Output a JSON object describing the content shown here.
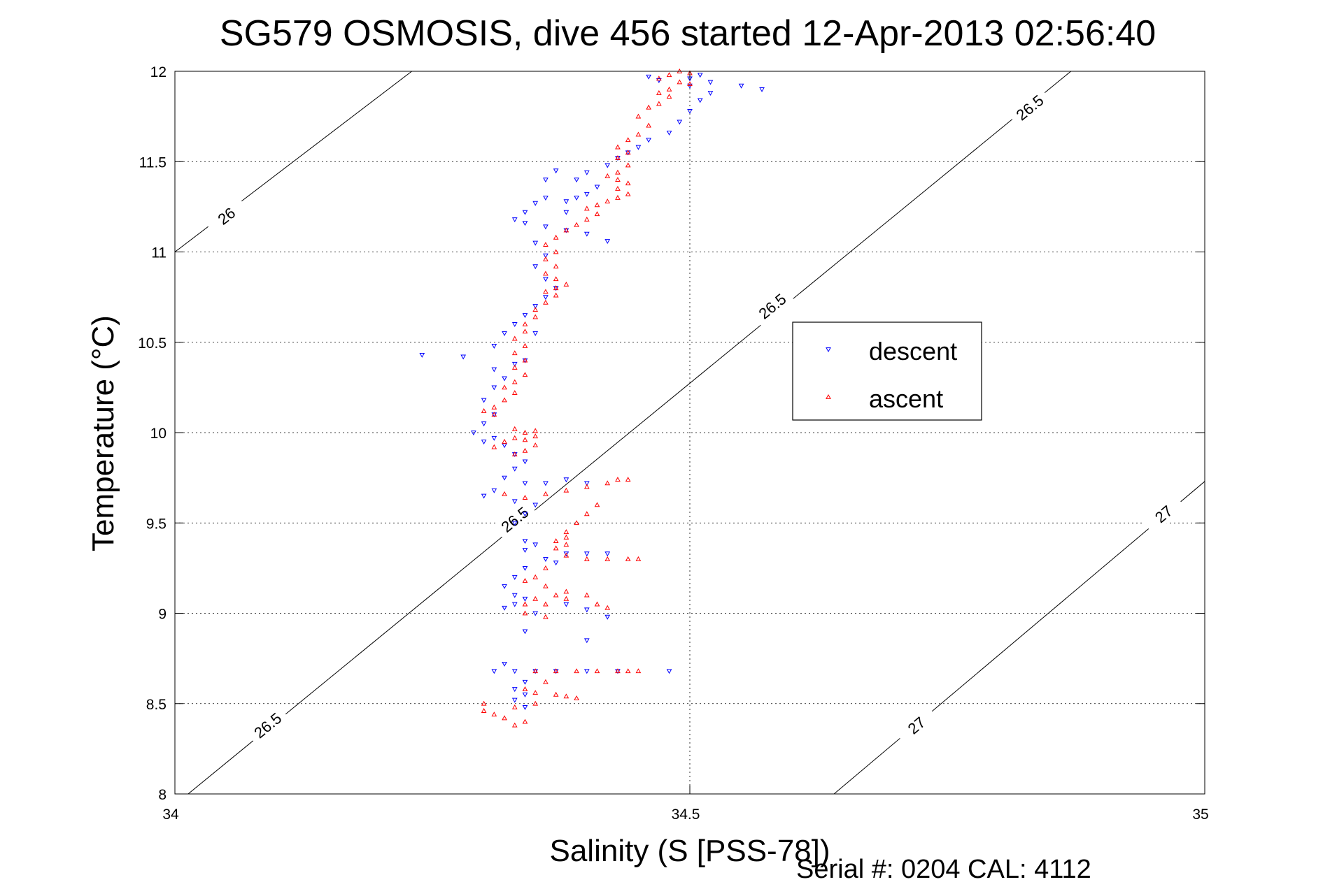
{
  "chart_data": {
    "type": "scatter",
    "title": "SG579 OSMOSIS, dive 456 started 12-Apr-2013 02:56:40",
    "xlabel": "Salinity (S [PSS-78])",
    "ylabel": "Temperature (°C)",
    "xlim": [
      34,
      35
    ],
    "ylim": [
      8,
      12
    ],
    "x_ticks": [
      "34",
      "34.5",
      "35"
    ],
    "y_ticks": [
      "8",
      "8.5",
      "9",
      "9.5",
      "10",
      "10.5",
      "11",
      "11.5",
      "12"
    ],
    "grid": true,
    "legend_position": "right",
    "colors": {
      "descent": "#0000ff",
      "ascent": "#ff0000",
      "contour": "#000000"
    },
    "series": [
      {
        "name": "descent",
        "marker": "triangle-down",
        "color": "#0000ff",
        "points": [
          [
            34.51,
            11.98
          ],
          [
            34.5,
            11.96
          ],
          [
            34.52,
            11.94
          ],
          [
            34.5,
            11.92
          ],
          [
            34.47,
            11.95
          ],
          [
            34.46,
            11.97
          ],
          [
            34.55,
            11.92
          ],
          [
            34.57,
            11.9
          ],
          [
            34.52,
            11.88
          ],
          [
            34.51,
            11.84
          ],
          [
            34.5,
            11.78
          ],
          [
            34.49,
            11.72
          ],
          [
            34.48,
            11.66
          ],
          [
            34.46,
            11.62
          ],
          [
            34.45,
            11.58
          ],
          [
            34.44,
            11.55
          ],
          [
            34.43,
            11.52
          ],
          [
            34.42,
            11.48
          ],
          [
            34.4,
            11.44
          ],
          [
            34.39,
            11.4
          ],
          [
            34.41,
            11.36
          ],
          [
            34.4,
            11.32
          ],
          [
            34.39,
            11.3
          ],
          [
            34.38,
            11.28
          ],
          [
            34.36,
            11.3
          ],
          [
            34.35,
            11.27
          ],
          [
            34.34,
            11.22
          ],
          [
            34.33,
            11.18
          ],
          [
            34.34,
            11.16
          ],
          [
            34.36,
            11.14
          ],
          [
            34.38,
            11.12
          ],
          [
            34.4,
            11.1
          ],
          [
            34.42,
            11.06
          ],
          [
            34.37,
            11.45
          ],
          [
            34.36,
            11.4
          ],
          [
            34.38,
            11.22
          ],
          [
            34.35,
            11.05
          ],
          [
            34.36,
            10.98
          ],
          [
            34.35,
            10.92
          ],
          [
            34.36,
            10.85
          ],
          [
            34.37,
            10.8
          ],
          [
            34.36,
            10.75
          ],
          [
            34.35,
            10.7
          ],
          [
            34.34,
            10.65
          ],
          [
            34.33,
            10.6
          ],
          [
            34.32,
            10.55
          ],
          [
            34.35,
            10.55
          ],
          [
            34.34,
            10.4
          ],
          [
            34.33,
            10.38
          ],
          [
            34.28,
            10.42
          ],
          [
            34.24,
            10.43
          ],
          [
            34.31,
            10.48
          ],
          [
            34.31,
            10.35
          ],
          [
            34.32,
            10.3
          ],
          [
            34.31,
            10.25
          ],
          [
            34.3,
            10.18
          ],
          [
            34.31,
            10.1
          ],
          [
            34.3,
            10.05
          ],
          [
            34.29,
            10.0
          ],
          [
            34.3,
            9.95
          ],
          [
            34.31,
            9.97
          ],
          [
            34.32,
            9.93
          ],
          [
            34.33,
            9.88
          ],
          [
            34.34,
            9.84
          ],
          [
            34.33,
            9.8
          ],
          [
            34.32,
            9.75
          ],
          [
            34.34,
            9.72
          ],
          [
            34.36,
            9.72
          ],
          [
            34.38,
            9.74
          ],
          [
            34.4,
            9.72
          ],
          [
            34.31,
            9.68
          ],
          [
            34.3,
            9.65
          ],
          [
            34.33,
            9.62
          ],
          [
            34.35,
            9.6
          ],
          [
            34.34,
            9.55
          ],
          [
            34.33,
            9.5
          ],
          [
            34.34,
            9.4
          ],
          [
            34.35,
            9.38
          ],
          [
            34.34,
            9.35
          ],
          [
            34.36,
            9.3
          ],
          [
            34.38,
            9.33
          ],
          [
            34.4,
            9.33
          ],
          [
            34.42,
            9.33
          ],
          [
            34.37,
            9.28
          ],
          [
            34.34,
            9.25
          ],
          [
            34.33,
            9.2
          ],
          [
            34.32,
            9.15
          ],
          [
            34.33,
            9.1
          ],
          [
            34.34,
            9.08
          ],
          [
            34.33,
            9.05
          ],
          [
            34.32,
            9.03
          ],
          [
            34.35,
            9.0
          ],
          [
            34.38,
            9.05
          ],
          [
            34.4,
            9.02
          ],
          [
            34.42,
            8.98
          ],
          [
            34.4,
            8.85
          ],
          [
            34.34,
            8.9
          ],
          [
            34.32,
            8.72
          ],
          [
            34.31,
            8.68
          ],
          [
            34.33,
            8.68
          ],
          [
            34.35,
            8.68
          ],
          [
            34.37,
            8.68
          ],
          [
            34.4,
            8.68
          ],
          [
            34.43,
            8.68
          ],
          [
            34.48,
            8.68
          ],
          [
            34.34,
            8.62
          ],
          [
            34.33,
            8.58
          ],
          [
            34.34,
            8.55
          ],
          [
            34.33,
            8.52
          ],
          [
            34.34,
            8.48
          ]
        ]
      },
      {
        "name": "ascent",
        "marker": "triangle-up",
        "color": "#ff0000",
        "points": [
          [
            34.49,
            12.0
          ],
          [
            34.5,
            11.99
          ],
          [
            34.48,
            11.98
          ],
          [
            34.47,
            11.96
          ],
          [
            34.49,
            11.94
          ],
          [
            34.5,
            11.93
          ],
          [
            34.48,
            11.9
          ],
          [
            34.47,
            11.88
          ],
          [
            34.48,
            11.86
          ],
          [
            34.47,
            11.82
          ],
          [
            34.46,
            11.8
          ],
          [
            34.45,
            11.75
          ],
          [
            34.46,
            11.7
          ],
          [
            34.45,
            11.65
          ],
          [
            34.44,
            11.62
          ],
          [
            34.43,
            11.58
          ],
          [
            34.44,
            11.55
          ],
          [
            34.43,
            11.52
          ],
          [
            34.44,
            11.48
          ],
          [
            34.43,
            11.44
          ],
          [
            34.42,
            11.42
          ],
          [
            34.43,
            11.4
          ],
          [
            34.44,
            11.38
          ],
          [
            34.43,
            11.35
          ],
          [
            34.44,
            11.32
          ],
          [
            34.43,
            11.3
          ],
          [
            34.42,
            11.28
          ],
          [
            34.41,
            11.26
          ],
          [
            34.4,
            11.24
          ],
          [
            34.41,
            11.21
          ],
          [
            34.4,
            11.18
          ],
          [
            34.39,
            11.15
          ],
          [
            34.38,
            11.12
          ],
          [
            34.37,
            11.08
          ],
          [
            34.36,
            11.04
          ],
          [
            34.37,
            11.0
          ],
          [
            34.36,
            10.96
          ],
          [
            34.37,
            10.92
          ],
          [
            34.36,
            10.88
          ],
          [
            34.37,
            10.85
          ],
          [
            34.38,
            10.82
          ],
          [
            34.37,
            10.8
          ],
          [
            34.36,
            10.78
          ],
          [
            34.37,
            10.76
          ],
          [
            34.36,
            10.72
          ],
          [
            34.35,
            10.68
          ],
          [
            34.35,
            10.64
          ],
          [
            34.34,
            10.6
          ],
          [
            34.34,
            10.56
          ],
          [
            34.33,
            10.52
          ],
          [
            34.34,
            10.48
          ],
          [
            34.33,
            10.44
          ],
          [
            34.34,
            10.4
          ],
          [
            34.33,
            10.36
          ],
          [
            34.34,
            10.32
          ],
          [
            34.33,
            10.28
          ],
          [
            34.32,
            10.25
          ],
          [
            34.33,
            10.22
          ],
          [
            34.32,
            10.18
          ],
          [
            34.31,
            10.14
          ],
          [
            34.3,
            10.12
          ],
          [
            34.31,
            10.1
          ],
          [
            34.33,
            10.02
          ],
          [
            34.34,
            10.0
          ],
          [
            34.35,
            10.01
          ],
          [
            34.35,
            9.98
          ],
          [
            34.34,
            9.96
          ],
          [
            34.33,
            9.97
          ],
          [
            34.32,
            9.95
          ],
          [
            34.35,
            9.93
          ],
          [
            34.34,
            9.9
          ],
          [
            34.33,
            9.88
          ],
          [
            34.31,
            9.92
          ],
          [
            34.32,
            9.66
          ],
          [
            34.34,
            9.64
          ],
          [
            34.36,
            9.66
          ],
          [
            34.38,
            9.68
          ],
          [
            34.4,
            9.7
          ],
          [
            34.42,
            9.72
          ],
          [
            34.43,
            9.74
          ],
          [
            34.44,
            9.74
          ],
          [
            34.41,
            9.6
          ],
          [
            34.4,
            9.55
          ],
          [
            34.39,
            9.5
          ],
          [
            34.38,
            9.45
          ],
          [
            34.38,
            9.42
          ],
          [
            34.37,
            9.4
          ],
          [
            34.38,
            9.38
          ],
          [
            34.37,
            9.36
          ],
          [
            34.38,
            9.32
          ],
          [
            34.4,
            9.3
          ],
          [
            34.42,
            9.3
          ],
          [
            34.44,
            9.3
          ],
          [
            34.45,
            9.3
          ],
          [
            34.36,
            9.25
          ],
          [
            34.35,
            9.2
          ],
          [
            34.34,
            9.18
          ],
          [
            34.36,
            9.15
          ],
          [
            34.38,
            9.12
          ],
          [
            34.37,
            9.1
          ],
          [
            34.35,
            9.08
          ],
          [
            34.34,
            9.05
          ],
          [
            34.36,
            9.05
          ],
          [
            34.38,
            9.08
          ],
          [
            34.4,
            9.1
          ],
          [
            34.41,
            9.05
          ],
          [
            34.42,
            9.03
          ],
          [
            34.34,
            9.0
          ],
          [
            34.36,
            8.98
          ],
          [
            34.35,
            8.68
          ],
          [
            34.37,
            8.68
          ],
          [
            34.39,
            8.68
          ],
          [
            34.41,
            8.68
          ],
          [
            34.43,
            8.68
          ],
          [
            34.44,
            8.68
          ],
          [
            34.45,
            8.68
          ],
          [
            34.36,
            8.62
          ],
          [
            34.34,
            8.58
          ],
          [
            34.35,
            8.56
          ],
          [
            34.37,
            8.55
          ],
          [
            34.38,
            8.54
          ],
          [
            34.39,
            8.53
          ],
          [
            34.35,
            8.5
          ],
          [
            34.33,
            8.48
          ],
          [
            34.3,
            8.5
          ],
          [
            34.3,
            8.46
          ],
          [
            34.31,
            8.44
          ],
          [
            34.32,
            8.42
          ],
          [
            34.34,
            8.4
          ],
          [
            34.33,
            8.38
          ]
        ]
      }
    ],
    "contours": [
      {
        "label": "26",
        "points": [
          [
            34.0,
            11.0
          ],
          [
            34.23,
            12.0
          ]
        ],
        "labels_at": [
          [
            34.05,
            11.2
          ]
        ]
      },
      {
        "label": "26.5",
        "points": [
          [
            34.0,
            7.94
          ],
          [
            34.87,
            12.0
          ]
        ],
        "labels_at": [
          [
            34.09,
            8.38
          ],
          [
            34.33,
            9.52
          ],
          [
            34.58,
            10.7
          ],
          [
            34.83,
            11.8
          ]
        ]
      },
      {
        "label": "27",
        "points": [
          [
            34.64,
            8.0
          ],
          [
            35.0,
            9.73
          ]
        ],
        "labels_at": [
          [
            34.72,
            8.38
          ],
          [
            34.96,
            9.55
          ]
        ]
      }
    ],
    "legend": [
      {
        "name": "descent",
        "label": "descent"
      },
      {
        "name": "ascent",
        "label": "ascent"
      }
    ]
  },
  "footer": {
    "serial": "Serial #: 0204  CAL: 4112"
  }
}
